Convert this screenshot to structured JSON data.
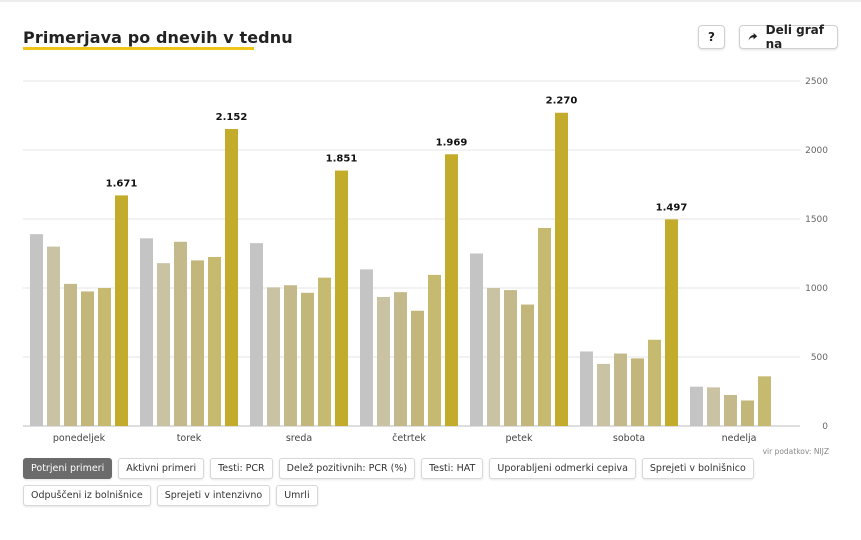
{
  "header": {
    "title": "Primerjava po dnevih v tednu",
    "help_label": "?",
    "share_label": "Deli graf na"
  },
  "source": "vir podatkov: NIJZ",
  "tabs": [
    {
      "label": "Potrjeni primeri",
      "active": true
    },
    {
      "label": "Aktivni primeri",
      "active": false
    },
    {
      "label": "Testi: PCR",
      "active": false
    },
    {
      "label": "Delež pozitivnih: PCR (%)",
      "active": false
    },
    {
      "label": "Testi: HAT",
      "active": false
    },
    {
      "label": "Uporabljeni odmerki cepiva",
      "active": false
    },
    {
      "label": "Sprejeti v bolnišnico",
      "active": false
    },
    {
      "label": "Odpuščeni iz bolnišnice",
      "active": false
    },
    {
      "label": "Sprejeti v intenzivno",
      "active": false
    },
    {
      "label": "Umrli",
      "active": false
    }
  ],
  "colors": {
    "series": [
      "#c4c4c4",
      "#c9c2a3",
      "#c4b98a",
      "#c2b67b",
      "#c6b970",
      "#c3ac2b"
    ],
    "highlight": "#c3ac2b",
    "grid": "#e4e4e4",
    "title_underline": "#f0c419"
  },
  "chart_data": {
    "type": "bar",
    "categories": [
      "ponedeljek",
      "torek",
      "sreda",
      "četrtek",
      "petek",
      "sobota",
      "nedelja"
    ],
    "values": [
      [
        1390,
        1300,
        1030,
        975,
        1000,
        1671
      ],
      [
        1360,
        1180,
        1335,
        1200,
        1225,
        2152
      ],
      [
        1325,
        1005,
        1020,
        965,
        1075,
        1851
      ],
      [
        1135,
        935,
        970,
        835,
        1095,
        1969
      ],
      [
        1250,
        1000,
        985,
        880,
        1435,
        2270
      ],
      [
        540,
        450,
        525,
        490,
        625,
        1497
      ],
      [
        285,
        280,
        225,
        185,
        360
      ]
    ],
    "data_labels": [
      "1.671",
      "2.152",
      "1.851",
      "1.969",
      "2.270",
      "1.497",
      ""
    ],
    "yticks": [
      "0",
      "500",
      "1000",
      "1500",
      "2000",
      "2500"
    ],
    "ytick_values": [
      0,
      500,
      1000,
      1500,
      2000,
      2500
    ],
    "ylim": [
      0,
      2500
    ],
    "grid": true,
    "y_axis_position": "right"
  }
}
